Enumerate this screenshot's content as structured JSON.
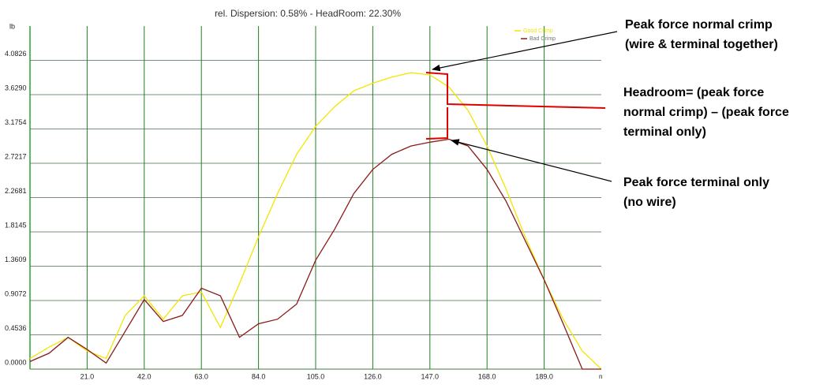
{
  "chart_data": {
    "type": "line",
    "title": "rel. Dispersion:  0.58% - HeadRoom: 22.30%",
    "y_label": "lb",
    "x_label": "n",
    "x": [
      0,
      7,
      14,
      21,
      28,
      35,
      42,
      49,
      56,
      63,
      70,
      77,
      84,
      91,
      98,
      105,
      112,
      119,
      126,
      133,
      140,
      147,
      154,
      161,
      168,
      175,
      182,
      189,
      196,
      203,
      210
    ],
    "series": [
      {
        "name": "Good Crimp",
        "color": "#f2e600",
        "values": [
          0.14,
          0.29,
          0.42,
          0.24,
          0.14,
          0.71,
          0.97,
          0.66,
          0.97,
          1.02,
          0.55,
          1.13,
          1.75,
          2.32,
          2.84,
          3.21,
          3.47,
          3.68,
          3.78,
          3.86,
          3.92,
          3.89,
          3.73,
          3.42,
          2.95,
          2.38,
          1.75,
          1.18,
          0.66,
          0.24,
          0
        ]
      },
      {
        "name": "Bad Crimp",
        "color": "#8b1a1a",
        "values": [
          0.1,
          0.21,
          0.42,
          0.26,
          0.08,
          0.5,
          0.92,
          0.63,
          0.71,
          1.07,
          0.97,
          0.42,
          0.6,
          0.66,
          0.86,
          1.44,
          1.85,
          2.32,
          2.64,
          2.84,
          2.95,
          3.0,
          3.04,
          2.95,
          2.64,
          2.22,
          1.7,
          1.18,
          0.6,
          0,
          0
        ]
      }
    ],
    "xlim": [
      0,
      210
    ],
    "ylim": [
      0,
      4.536
    ],
    "xticks": [
      {
        "value": 21,
        "label": "21.0"
      },
      {
        "value": 42,
        "label": "42.0"
      },
      {
        "value": 63,
        "label": "63.0"
      },
      {
        "value": 84,
        "label": "84.0"
      },
      {
        "value": 105,
        "label": "105.0"
      },
      {
        "value": 126,
        "label": "126.0"
      },
      {
        "value": 147,
        "label": "147.0"
      },
      {
        "value": 168,
        "label": "168.0"
      },
      {
        "value": 189,
        "label": "189.0"
      }
    ],
    "yticks": [
      {
        "value": 0,
        "label": "0.0000"
      },
      {
        "value": 0.4536,
        "label": "0.4536"
      },
      {
        "value": 0.9072,
        "label": "0.9072"
      },
      {
        "value": 1.3609,
        "label": "1.3609"
      },
      {
        "value": 1.8145,
        "label": "1.8145"
      },
      {
        "value": 2.2681,
        "label": "2.2681"
      },
      {
        "value": 2.7217,
        "label": "2.7217"
      },
      {
        "value": 3.1754,
        "label": "3.1754"
      },
      {
        "value": 3.629,
        "label": "3.6290"
      },
      {
        "value": 4.0826,
        "label": "4.0826"
      }
    ],
    "grid": true,
    "annotations": [
      {
        "lines": [
          "Peak force normal crimp",
          "(wire & terminal together)"
        ]
      },
      {
        "lines": [
          "Headroom= (peak force",
          "normal crimp) – (peak force",
          "terminal only)"
        ]
      },
      {
        "lines": [
          "Peak force terminal only",
          "(no wire)"
        ]
      }
    ]
  }
}
